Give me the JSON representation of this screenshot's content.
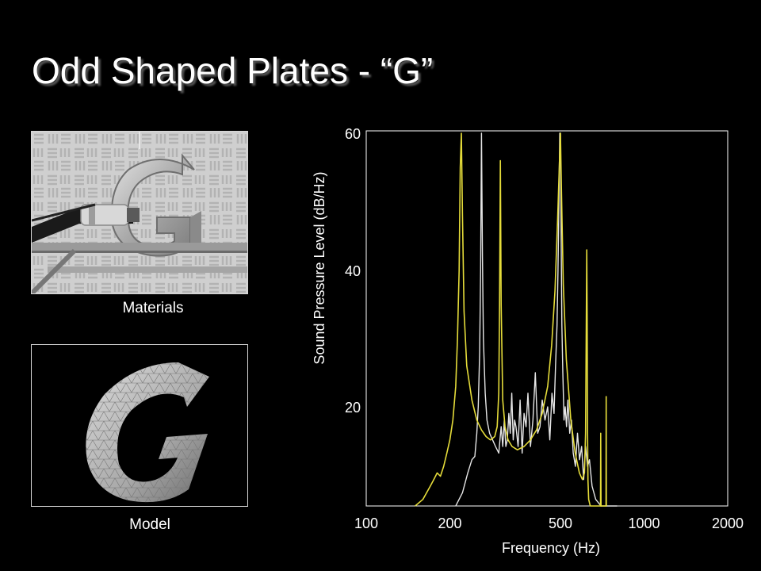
{
  "slide": {
    "title": "Odd Shaped Plates - “G”"
  },
  "images": [
    {
      "caption": "Materials",
      "icon": "photo-of-aluminum-g-plate-on-shaker"
    },
    {
      "caption": "Model",
      "icon": "mesh-model-of-g-plate"
    }
  ],
  "colors": {
    "background": "#000000",
    "measured": "#e6e6e6",
    "model": "#e5dc3a",
    "frame": "#d8d8d8"
  },
  "chart_data": {
    "type": "line",
    "xlabel": "Frequency (Hz)",
    "ylabel": "Sound Pressure Level (dB/Hz)",
    "xscale": "log",
    "xlim": [
      100,
      2000
    ],
    "ylim": [
      5,
      60
    ],
    "xticks": [
      "100",
      "200",
      "500",
      "1000",
      "2000"
    ],
    "yticks": [
      "20",
      "40",
      "60"
    ],
    "grid": false,
    "legend": "none",
    "series": [
      {
        "x": [
          210,
          222,
          232,
          240,
          246,
          250,
          253,
          256,
          258,
          260,
          262,
          264,
          268,
          272,
          278,
          285,
          292,
          300,
          306,
          310,
          314,
          318,
          322,
          326,
          330,
          334,
          338,
          342,
          346,
          352,
          358,
          364,
          370,
          376,
          382,
          390,
          398,
          406,
          414,
          422,
          430,
          440,
          450,
          458,
          466,
          474,
          480,
          486,
          490,
          494,
          497,
          500,
          503,
          506,
          510,
          515,
          520,
          526,
          532,
          540,
          548,
          556,
          566,
          576,
          586,
          596,
          606,
          616,
          626,
          636,
          650,
          670,
          700,
          740,
          800
        ],
        "y": [
          5,
          7,
          10,
          12,
          12.5,
          16,
          20,
          28,
          40,
          60,
          42,
          30,
          22,
          18,
          16,
          15,
          14,
          13,
          17,
          14,
          18,
          14,
          15,
          19,
          16,
          22,
          15,
          18,
          17,
          14,
          21,
          13,
          19,
          17,
          22,
          14,
          18,
          25,
          16,
          17,
          21,
          18,
          20,
          15,
          22,
          19,
          26,
          32,
          40,
          50,
          60,
          60,
          45,
          32,
          25,
          18,
          20,
          17,
          21,
          16,
          18,
          13,
          11,
          16,
          12,
          14,
          9,
          14,
          11,
          12,
          8,
          6,
          5,
          5,
          5
        ]
      },
      {
        "x": [
          150,
          160,
          170,
          175,
          180,
          185,
          190,
          195,
          200,
          205,
          210,
          213,
          216,
          218,
          220,
          222,
          225,
          230,
          240,
          250,
          260,
          270,
          280,
          290,
          296,
          300,
          302,
          304,
          306,
          310,
          316,
          324,
          335,
          350,
          370,
          390,
          410,
          430,
          450,
          465,
          478,
          488,
          496,
          500,
          504,
          512,
          525,
          545,
          565,
          585,
          600,
          610,
          616,
          620,
          622,
          624,
          626,
          628,
          632,
          640,
          660,
          680,
          700,
          720,
          730
        ],
        "y": [
          5,
          6,
          8,
          9,
          10,
          9.5,
          11,
          13,
          15,
          18,
          23,
          30,
          40,
          55,
          60,
          48,
          34,
          26,
          21,
          18,
          16.5,
          15.5,
          15,
          15.5,
          17,
          22,
          35,
          56,
          35,
          21,
          17,
          15,
          14,
          13.5,
          14,
          15,
          16.5,
          19,
          23,
          29,
          37,
          47,
          56,
          60,
          52,
          38,
          27,
          18,
          13,
          10,
          9,
          10,
          16,
          34,
          43,
          33,
          16,
          9,
          6,
          5,
          5,
          5,
          5,
          5,
          5
        ]
      },
      {
        "x": [
          695,
          697,
          698,
          700,
          702
        ],
        "y": [
          5,
          5,
          16,
          5,
          5
        ]
      },
      {
        "x": [
          728,
          729.5,
          730.5,
          731.5,
          733
        ],
        "y": [
          5,
          5,
          21.5,
          5,
          5
        ]
      }
    ]
  }
}
